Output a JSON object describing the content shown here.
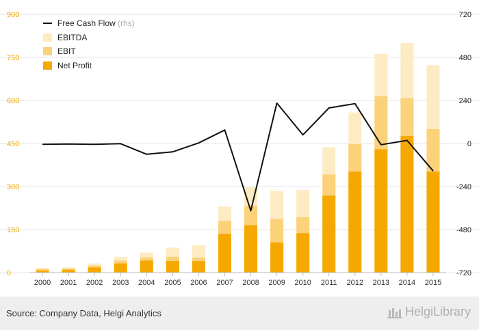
{
  "chart_data": {
    "type": "bar",
    "subtype": "stacked-bar-with-line",
    "categories": [
      "2000",
      "2001",
      "2002",
      "2003",
      "2004",
      "2005",
      "2006",
      "2007",
      "2008",
      "2009",
      "2010",
      "2011",
      "2012",
      "2013",
      "2014",
      "2015"
    ],
    "series": [
      {
        "name": "Net Profit",
        "axis": "left",
        "color": "#f5a800",
        "values": [
          7,
          10,
          18,
          32,
          42,
          40,
          40,
          135,
          165,
          105,
          137,
          268,
          352,
          430,
          476,
          352
        ]
      },
      {
        "name": "EBIT",
        "axis": "left",
        "color": "#fbd27a",
        "values": [
          12,
          14,
          25,
          42,
          53,
          55,
          52,
          180,
          232,
          187,
          193,
          342,
          448,
          615,
          608,
          500
        ]
      },
      {
        "name": "EBITDA",
        "axis": "left",
        "color": "#fdebc3",
        "values": [
          17,
          18,
          32,
          55,
          70,
          87,
          95,
          230,
          297,
          285,
          288,
          437,
          558,
          762,
          800,
          723
        ]
      },
      {
        "name": "Free Cash Flow",
        "note": "(rhs)",
        "axis": "right",
        "type": "line",
        "color": "#111111",
        "values": [
          -5,
          -3,
          -5,
          -1,
          -60,
          -47,
          3,
          75,
          -375,
          225,
          48,
          198,
          222,
          -7,
          17,
          -153
        ]
      }
    ],
    "left_axis": {
      "min": 0,
      "max": 900,
      "ticks": [
        0,
        150,
        300,
        450,
        600,
        750,
        900
      ]
    },
    "right_axis": {
      "min": -720,
      "max": 720,
      "ticks": [
        -720,
        -480,
        -240,
        0,
        240,
        480,
        720
      ]
    },
    "grid": true,
    "legend_position": "top-left"
  },
  "footer": {
    "source": "Source: Company Data, Helgi Analytics",
    "brand": "HelgiLibrary"
  }
}
